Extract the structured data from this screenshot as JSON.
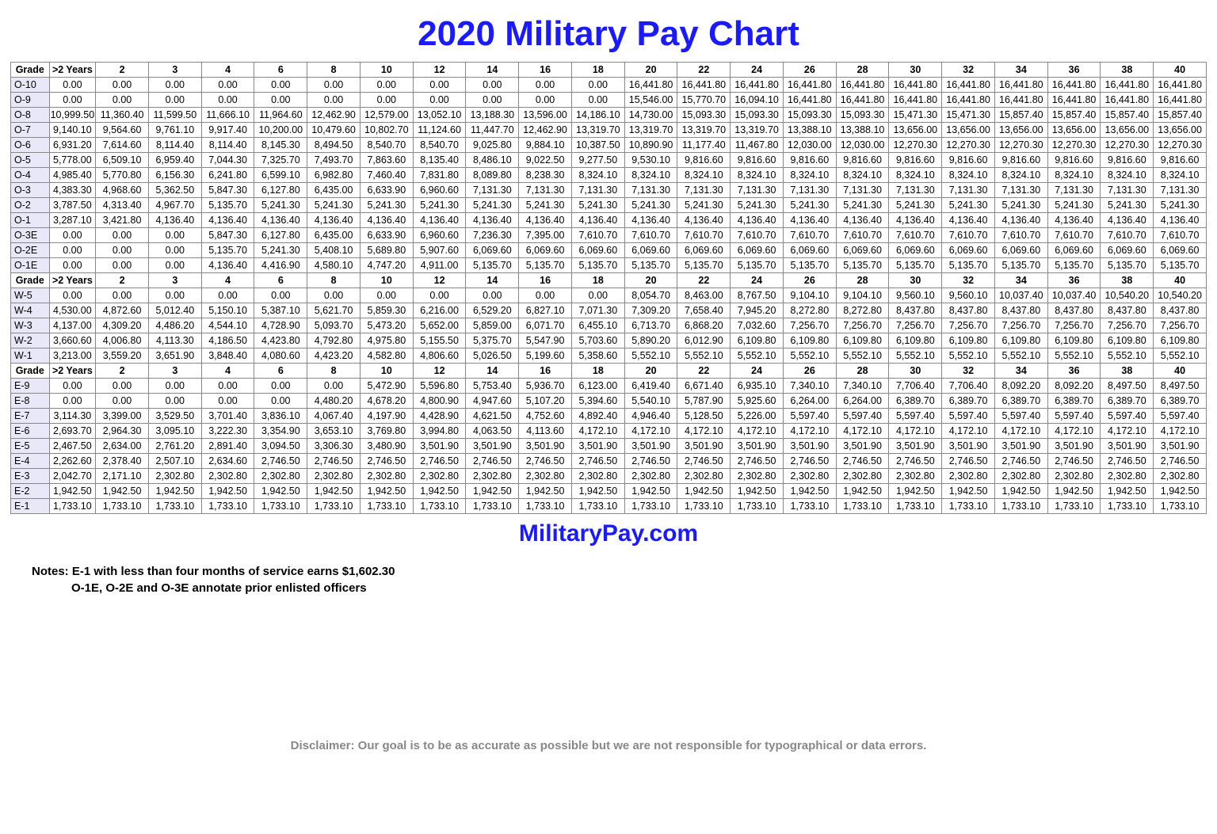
{
  "title": "2020 Military Pay Chart",
  "subtitle": "MilitaryPay.com",
  "headers": [
    "Grade",
    ">2 Years",
    "2",
    "3",
    "4",
    "6",
    "8",
    "10",
    "12",
    "14",
    "16",
    "18",
    "20",
    "22",
    "24",
    "26",
    "28",
    "30",
    "32",
    "34",
    "36",
    "38",
    "40"
  ],
  "colors": {
    "title": "#1a1aff",
    "border": "#888888",
    "grade_bg": "#e8e8f8",
    "background": "#ffffff",
    "disclaimer": "#888888"
  },
  "fontsizes": {
    "title": 44,
    "subtitle": 30,
    "table": 12.5,
    "notes": 15,
    "disclaimer": 15
  },
  "sections": [
    {
      "rows": [
        {
          "grade": "O-10",
          "v": [
            "0.00",
            "0.00",
            "0.00",
            "0.00",
            "0.00",
            "0.00",
            "0.00",
            "0.00",
            "0.00",
            "0.00",
            "0.00",
            "16,441.80",
            "16,441.80",
            "16,441.80",
            "16,441.80",
            "16,441.80",
            "16,441.80",
            "16,441.80",
            "16,441.80",
            "16,441.80",
            "16,441.80",
            "16,441.80"
          ]
        },
        {
          "grade": "O-9",
          "v": [
            "0.00",
            "0.00",
            "0.00",
            "0.00",
            "0.00",
            "0.00",
            "0.00",
            "0.00",
            "0.00",
            "0.00",
            "0.00",
            "15,546.00",
            "15,770.70",
            "16,094.10",
            "16,441.80",
            "16,441.80",
            "16,441.80",
            "16,441.80",
            "16,441.80",
            "16,441.80",
            "16,441.80",
            "16,441.80"
          ]
        },
        {
          "grade": "O-8",
          "v": [
            "10,999.50",
            "11,360.40",
            "11,599.50",
            "11,666.10",
            "11,964.60",
            "12,462.90",
            "12,579.00",
            "13,052.10",
            "13,188.30",
            "13,596.00",
            "14,186.10",
            "14,730.00",
            "15,093.30",
            "15,093.30",
            "15,093.30",
            "15,093.30",
            "15,471.30",
            "15,471.30",
            "15,857.40",
            "15,857.40",
            "15,857.40",
            "15,857.40"
          ]
        },
        {
          "grade": "O-7",
          "v": [
            "9,140.10",
            "9,564.60",
            "9,761.10",
            "9,917.40",
            "10,200.00",
            "10,479.60",
            "10,802.70",
            "11,124.60",
            "11,447.70",
            "12,462.90",
            "13,319.70",
            "13,319.70",
            "13,319.70",
            "13,319.70",
            "13,388.10",
            "13,388.10",
            "13,656.00",
            "13,656.00",
            "13,656.00",
            "13,656.00",
            "13,656.00",
            "13,656.00"
          ]
        },
        {
          "grade": "O-6",
          "v": [
            "6,931.20",
            "7,614.60",
            "8,114.40",
            "8,114.40",
            "8,145.30",
            "8,494.50",
            "8,540.70",
            "8,540.70",
            "9,025.80",
            "9,884.10",
            "10,387.50",
            "10,890.90",
            "11,177.40",
            "11,467.80",
            "12,030.00",
            "12,030.00",
            "12,270.30",
            "12,270.30",
            "12,270.30",
            "12,270.30",
            "12,270.30",
            "12,270.30"
          ]
        },
        {
          "grade": "O-5",
          "v": [
            "5,778.00",
            "6,509.10",
            "6,959.40",
            "7,044.30",
            "7,325.70",
            "7,493.70",
            "7,863.60",
            "8,135.40",
            "8,486.10",
            "9,022.50",
            "9,277.50",
            "9,530.10",
            "9,816.60",
            "9,816.60",
            "9,816.60",
            "9,816.60",
            "9,816.60",
            "9,816.60",
            "9,816.60",
            "9,816.60",
            "9,816.60",
            "9,816.60"
          ]
        },
        {
          "grade": "O-4",
          "v": [
            "4,985.40",
            "5,770.80",
            "6,156.30",
            "6,241.80",
            "6,599.10",
            "6,982.80",
            "7,460.40",
            "7,831.80",
            "8,089.80",
            "8,238.30",
            "8,324.10",
            "8,324.10",
            "8,324.10",
            "8,324.10",
            "8,324.10",
            "8,324.10",
            "8,324.10",
            "8,324.10",
            "8,324.10",
            "8,324.10",
            "8,324.10",
            "8,324.10"
          ]
        },
        {
          "grade": "O-3",
          "v": [
            "4,383.30",
            "4,968.60",
            "5,362.50",
            "5,847.30",
            "6,127.80",
            "6,435.00",
            "6,633.90",
            "6,960.60",
            "7,131.30",
            "7,131.30",
            "7,131.30",
            "7,131.30",
            "7,131.30",
            "7,131.30",
            "7,131.30",
            "7,131.30",
            "7,131.30",
            "7,131.30",
            "7,131.30",
            "7,131.30",
            "7,131.30",
            "7,131.30"
          ]
        },
        {
          "grade": "O-2",
          "v": [
            "3,787.50",
            "4,313.40",
            "4,967.70",
            "5,135.70",
            "5,241.30",
            "5,241.30",
            "5,241.30",
            "5,241.30",
            "5,241.30",
            "5,241.30",
            "5,241.30",
            "5,241.30",
            "5,241.30",
            "5,241.30",
            "5,241.30",
            "5,241.30",
            "5,241.30",
            "5,241.30",
            "5,241.30",
            "5,241.30",
            "5,241.30",
            "5,241.30"
          ]
        },
        {
          "grade": "O-1",
          "v": [
            "3,287.10",
            "3,421.80",
            "4,136.40",
            "4,136.40",
            "4,136.40",
            "4,136.40",
            "4,136.40",
            "4,136.40",
            "4,136.40",
            "4,136.40",
            "4,136.40",
            "4,136.40",
            "4,136.40",
            "4,136.40",
            "4,136.40",
            "4,136.40",
            "4,136.40",
            "4,136.40",
            "4,136.40",
            "4,136.40",
            "4,136.40",
            "4,136.40"
          ]
        },
        {
          "grade": "O-3E",
          "v": [
            "0.00",
            "0.00",
            "0.00",
            "5,847.30",
            "6,127.80",
            "6,435.00",
            "6,633.90",
            "6,960.60",
            "7,236.30",
            "7,395.00",
            "7,610.70",
            "7,610.70",
            "7,610.70",
            "7,610.70",
            "7,610.70",
            "7,610.70",
            "7,610.70",
            "7,610.70",
            "7,610.70",
            "7,610.70",
            "7,610.70",
            "7,610.70"
          ]
        },
        {
          "grade": "O-2E",
          "v": [
            "0.00",
            "0.00",
            "0.00",
            "5,135.70",
            "5,241.30",
            "5,408.10",
            "5,689.80",
            "5,907.60",
            "6,069.60",
            "6,069.60",
            "6,069.60",
            "6,069.60",
            "6,069.60",
            "6,069.60",
            "6,069.60",
            "6,069.60",
            "6,069.60",
            "6,069.60",
            "6,069.60",
            "6,069.60",
            "6,069.60",
            "6,069.60"
          ]
        },
        {
          "grade": "O-1E",
          "v": [
            "0.00",
            "0.00",
            "0.00",
            "4,136.40",
            "4,416.90",
            "4,580.10",
            "4,747.20",
            "4,911.00",
            "5,135.70",
            "5,135.70",
            "5,135.70",
            "5,135.70",
            "5,135.70",
            "5,135.70",
            "5,135.70",
            "5,135.70",
            "5,135.70",
            "5,135.70",
            "5,135.70",
            "5,135.70",
            "5,135.70",
            "5,135.70"
          ]
        }
      ]
    },
    {
      "rows": [
        {
          "grade": "W-5",
          "v": [
            "0.00",
            "0.00",
            "0.00",
            "0.00",
            "0.00",
            "0.00",
            "0.00",
            "0.00",
            "0.00",
            "0.00",
            "0.00",
            "8,054.70",
            "8,463.00",
            "8,767.50",
            "9,104.10",
            "9,104.10",
            "9,560.10",
            "9,560.10",
            "10,037.40",
            "10,037.40",
            "10,540.20",
            "10,540.20"
          ]
        },
        {
          "grade": "W-4",
          "v": [
            "4,530.00",
            "4,872.60",
            "5,012.40",
            "5,150.10",
            "5,387.10",
            "5,621.70",
            "5,859.30",
            "6,216.00",
            "6,529.20",
            "6,827.10",
            "7,071.30",
            "7,309.20",
            "7,658.40",
            "7,945.20",
            "8,272.80",
            "8,272.80",
            "8,437.80",
            "8,437.80",
            "8,437.80",
            "8,437.80",
            "8,437.80",
            "8,437.80"
          ]
        },
        {
          "grade": "W-3",
          "v": [
            "4,137.00",
            "4,309.20",
            "4,486.20",
            "4,544.10",
            "4,728.90",
            "5,093.70",
            "5,473.20",
            "5,652.00",
            "5,859.00",
            "6,071.70",
            "6,455.10",
            "6,713.70",
            "6,868.20",
            "7,032.60",
            "7,256.70",
            "7,256.70",
            "7,256.70",
            "7,256.70",
            "7,256.70",
            "7,256.70",
            "7,256.70",
            "7,256.70"
          ]
        },
        {
          "grade": "W-2",
          "v": [
            "3,660.60",
            "4,006.80",
            "4,113.30",
            "4,186.50",
            "4,423.80",
            "4,792.80",
            "4,975.80",
            "5,155.50",
            "5,375.70",
            "5,547.90",
            "5,703.60",
            "5,890.20",
            "6,012.90",
            "6,109.80",
            "6,109.80",
            "6,109.80",
            "6,109.80",
            "6,109.80",
            "6,109.80",
            "6,109.80",
            "6,109.80",
            "6,109.80"
          ]
        },
        {
          "grade": "W-1",
          "v": [
            "3,213.00",
            "3,559.20",
            "3,651.90",
            "3,848.40",
            "4,080.60",
            "4,423.20",
            "4,582.80",
            "4,806.60",
            "5,026.50",
            "5,199.60",
            "5,358.60",
            "5,552.10",
            "5,552.10",
            "5,552.10",
            "5,552.10",
            "5,552.10",
            "5,552.10",
            "5,552.10",
            "5,552.10",
            "5,552.10",
            "5,552.10",
            "5,552.10"
          ]
        }
      ]
    },
    {
      "rows": [
        {
          "grade": "E-9",
          "v": [
            "0.00",
            "0.00",
            "0.00",
            "0.00",
            "0.00",
            "0.00",
            "5,472.90",
            "5,596.80",
            "5,753.40",
            "5,936.70",
            "6,123.00",
            "6,419.40",
            "6,671.40",
            "6,935.10",
            "7,340.10",
            "7,340.10",
            "7,706.40",
            "7,706.40",
            "8,092.20",
            "8,092.20",
            "8,497.50",
            "8,497.50"
          ]
        },
        {
          "grade": "E-8",
          "v": [
            "0.00",
            "0.00",
            "0.00",
            "0.00",
            "0.00",
            "4,480.20",
            "4,678.20",
            "4,800.90",
            "4,947.60",
            "5,107.20",
            "5,394.60",
            "5,540.10",
            "5,787.90",
            "5,925.60",
            "6,264.00",
            "6,264.00",
            "6,389.70",
            "6,389.70",
            "6,389.70",
            "6,389.70",
            "6,389.70",
            "6,389.70"
          ]
        },
        {
          "grade": "E-7",
          "v": [
            "3,114.30",
            "3,399.00",
            "3,529.50",
            "3,701.40",
            "3,836.10",
            "4,067.40",
            "4,197.90",
            "4,428.90",
            "4,621.50",
            "4,752.60",
            "4,892.40",
            "4,946.40",
            "5,128.50",
            "5,226.00",
            "5,597.40",
            "5,597.40",
            "5,597.40",
            "5,597.40",
            "5,597.40",
            "5,597.40",
            "5,597.40",
            "5,597.40"
          ]
        },
        {
          "grade": "E-6",
          "v": [
            "2,693.70",
            "2,964.30",
            "3,095.10",
            "3,222.30",
            "3,354.90",
            "3,653.10",
            "3,769.80",
            "3,994.80",
            "4,063.50",
            "4,113.60",
            "4,172.10",
            "4,172.10",
            "4,172.10",
            "4,172.10",
            "4,172.10",
            "4,172.10",
            "4,172.10",
            "4,172.10",
            "4,172.10",
            "4,172.10",
            "4,172.10",
            "4,172.10"
          ]
        },
        {
          "grade": "E-5",
          "v": [
            "2,467.50",
            "2,634.00",
            "2,761.20",
            "2,891.40",
            "3,094.50",
            "3,306.30",
            "3,480.90",
            "3,501.90",
            "3,501.90",
            "3,501.90",
            "3,501.90",
            "3,501.90",
            "3,501.90",
            "3,501.90",
            "3,501.90",
            "3,501.90",
            "3,501.90",
            "3,501.90",
            "3,501.90",
            "3,501.90",
            "3,501.90",
            "3,501.90"
          ]
        },
        {
          "grade": "E-4",
          "v": [
            "2,262.60",
            "2,378.40",
            "2,507.10",
            "2,634.60",
            "2,746.50",
            "2,746.50",
            "2,746.50",
            "2,746.50",
            "2,746.50",
            "2,746.50",
            "2,746.50",
            "2,746.50",
            "2,746.50",
            "2,746.50",
            "2,746.50",
            "2,746.50",
            "2,746.50",
            "2,746.50",
            "2,746.50",
            "2,746.50",
            "2,746.50",
            "2,746.50"
          ]
        },
        {
          "grade": "E-3",
          "v": [
            "2,042.70",
            "2,171.10",
            "2,302.80",
            "2,302.80",
            "2,302.80",
            "2,302.80",
            "2,302.80",
            "2,302.80",
            "2,302.80",
            "2,302.80",
            "2,302.80",
            "2,302.80",
            "2,302.80",
            "2,302.80",
            "2,302.80",
            "2,302.80",
            "2,302.80",
            "2,302.80",
            "2,302.80",
            "2,302.80",
            "2,302.80",
            "2,302.80"
          ]
        },
        {
          "grade": "E-2",
          "v": [
            "1,942.50",
            "1,942.50",
            "1,942.50",
            "1,942.50",
            "1,942.50",
            "1,942.50",
            "1,942.50",
            "1,942.50",
            "1,942.50",
            "1,942.50",
            "1,942.50",
            "1,942.50",
            "1,942.50",
            "1,942.50",
            "1,942.50",
            "1,942.50",
            "1,942.50",
            "1,942.50",
            "1,942.50",
            "1,942.50",
            "1,942.50",
            "1,942.50"
          ]
        },
        {
          "grade": "E-1",
          "v": [
            "1,733.10",
            "1,733.10",
            "1,733.10",
            "1,733.10",
            "1,733.10",
            "1,733.10",
            "1,733.10",
            "1,733.10",
            "1,733.10",
            "1,733.10",
            "1,733.10",
            "1,733.10",
            "1,733.10",
            "1,733.10",
            "1,733.10",
            "1,733.10",
            "1,733.10",
            "1,733.10",
            "1,733.10",
            "1,733.10",
            "1,733.10",
            "1,733.10"
          ]
        }
      ]
    }
  ],
  "notes_label": "Notes:",
  "note1": "E-1 with less than four months of service earns $1,602.30",
  "note2": "O-1E, O-2E and O-3E annotate prior enlisted officers",
  "disclaimer": "Disclaimer: Our goal is to be as accurate as possible but we are not responsible for typographical or data errors."
}
